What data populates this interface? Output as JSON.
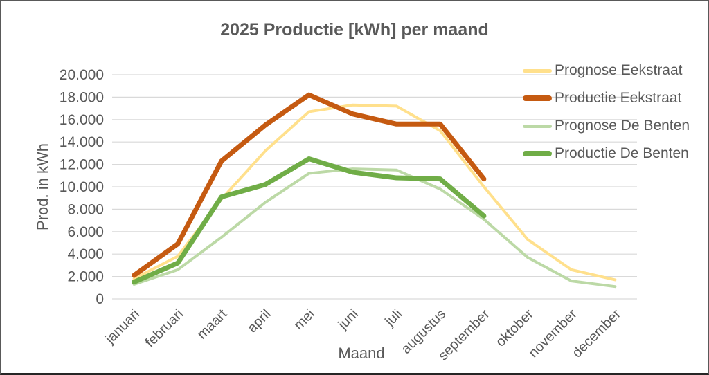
{
  "chart_data": {
    "type": "line",
    "title": "2025 Productie [kWh] per maand",
    "xlabel": "Maand",
    "ylabel": "Prod. in kWh",
    "ylim": [
      0,
      20000
    ],
    "grid": true,
    "legend_position": "top-right",
    "gridline_color": "#D9D9D9",
    "text_color": "#595959",
    "y_ticks": [
      {
        "value": 0,
        "label": "0"
      },
      {
        "value": 2000,
        "label": "2.000"
      },
      {
        "value": 4000,
        "label": "4.000"
      },
      {
        "value": 6000,
        "label": "6.000"
      },
      {
        "value": 8000,
        "label": "8.000"
      },
      {
        "value": 10000,
        "label": "10.000"
      },
      {
        "value": 12000,
        "label": "12.000"
      },
      {
        "value": 14000,
        "label": "14.000"
      },
      {
        "value": 16000,
        "label": "16.000"
      },
      {
        "value": 18000,
        "label": "18.000"
      },
      {
        "value": 20000,
        "label": "20.000"
      }
    ],
    "categories": [
      "januari",
      "februari",
      "maart",
      "april",
      "mei",
      "juni",
      "juli",
      "augustus",
      "september",
      "oktober",
      "november",
      "december"
    ],
    "series": [
      {
        "name": "Prognose Eekstraat",
        "color": "#FFE08C",
        "line_width": 4,
        "values": [
          1800,
          3800,
          8900,
          13200,
          16700,
          17300,
          17200,
          15000,
          10000,
          5300,
          2600,
          1700
        ]
      },
      {
        "name": "Productie Eekstraat",
        "color": "#C55A11",
        "line_width": 7,
        "values": [
          2100,
          4900,
          12300,
          15500,
          18200,
          16500,
          15600,
          15600,
          10700,
          null,
          null,
          null
        ]
      },
      {
        "name": "Prognose De Benten",
        "color": "#BCD9A6",
        "line_width": 4,
        "values": [
          1300,
          2600,
          5500,
          8600,
          11200,
          11600,
          11500,
          9800,
          7100,
          3700,
          1600,
          1100
        ]
      },
      {
        "name": "Productie De Benten",
        "color": "#70AD47",
        "line_width": 7,
        "values": [
          1500,
          3200,
          9100,
          10200,
          12500,
          11300,
          10800,
          10700,
          7400,
          null,
          null,
          null
        ]
      }
    ]
  }
}
